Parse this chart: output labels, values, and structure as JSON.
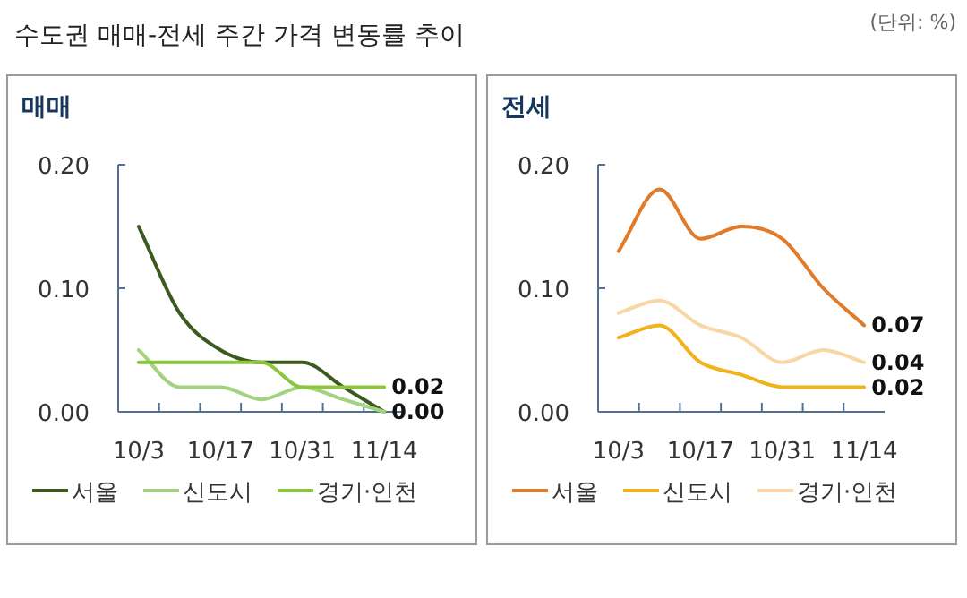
{
  "chart_data": [
    {
      "type": "line",
      "title": "수도권 매매-전세 주간 가격 변동률 추이",
      "subtitle": "매매",
      "annotations": [
        "(단위: %)"
      ],
      "categories": [
        "10/3",
        null,
        "10/17",
        null,
        "10/31",
        null,
        "11/14"
      ],
      "ylim": [
        0,
        0.2
      ],
      "yticks": [
        {
          "value": 0,
          "label": "0.00"
        },
        {
          "value": 0.1,
          "label": "0.10"
        },
        {
          "value": 0.2,
          "label": "0.20"
        }
      ],
      "legend": "bottom",
      "grid": false,
      "marker": "none",
      "line_style": "solid",
      "series": [
        {
          "name": "서울",
          "color": "#3d5a1e",
          "values": [
            0.15,
            0.08,
            0.05,
            0.04,
            0.04,
            0.02,
            0.0
          ],
          "value_labels": [
            null,
            null,
            null,
            null,
            null,
            null,
            "0.00"
          ]
        },
        {
          "name": "신도시",
          "color": "#a3d37e",
          "values": [
            0.05,
            0.02,
            0.02,
            0.01,
            0.02,
            0.01,
            0.0
          ]
        },
        {
          "name": "경기·인천",
          "color": "#8cc63f",
          "values": [
            0.04,
            0.04,
            0.04,
            0.04,
            0.02,
            0.02,
            0.02
          ],
          "value_labels": [
            null,
            null,
            null,
            null,
            null,
            null,
            "0.02"
          ]
        }
      ]
    },
    {
      "type": "line",
      "title": "전세",
      "categories": [
        "10/3",
        null,
        "10/17",
        null,
        "10/31",
        null,
        "11/14"
      ],
      "ylim": [
        0,
        0.2
      ],
      "yticks": [
        {
          "value": 0,
          "label": "0.00"
        },
        {
          "value": 0.1,
          "label": "0.10"
        },
        {
          "value": 0.2,
          "label": "0.20"
        }
      ],
      "legend": "bottom",
      "grid": false,
      "marker": "none",
      "line_style": "solid",
      "series": [
        {
          "name": "서울",
          "color": "#e07b2a",
          "values": [
            0.13,
            0.18,
            0.14,
            0.15,
            0.14,
            0.1,
            0.07
          ],
          "value_labels": [
            null,
            null,
            null,
            null,
            null,
            null,
            "0.07"
          ]
        },
        {
          "name": "신도시",
          "color": "#f2b21c",
          "values": [
            0.06,
            0.07,
            0.04,
            0.03,
            0.02,
            0.02,
            0.02
          ],
          "value_labels": [
            null,
            null,
            null,
            null,
            null,
            null,
            "0.02"
          ]
        },
        {
          "name": "경기·인천",
          "color": "#f7d7a6",
          "values": [
            0.08,
            0.09,
            0.07,
            0.06,
            0.04,
            0.05,
            0.04
          ],
          "value_labels": [
            null,
            null,
            null,
            null,
            null,
            null,
            "0.04"
          ]
        }
      ]
    }
  ]
}
